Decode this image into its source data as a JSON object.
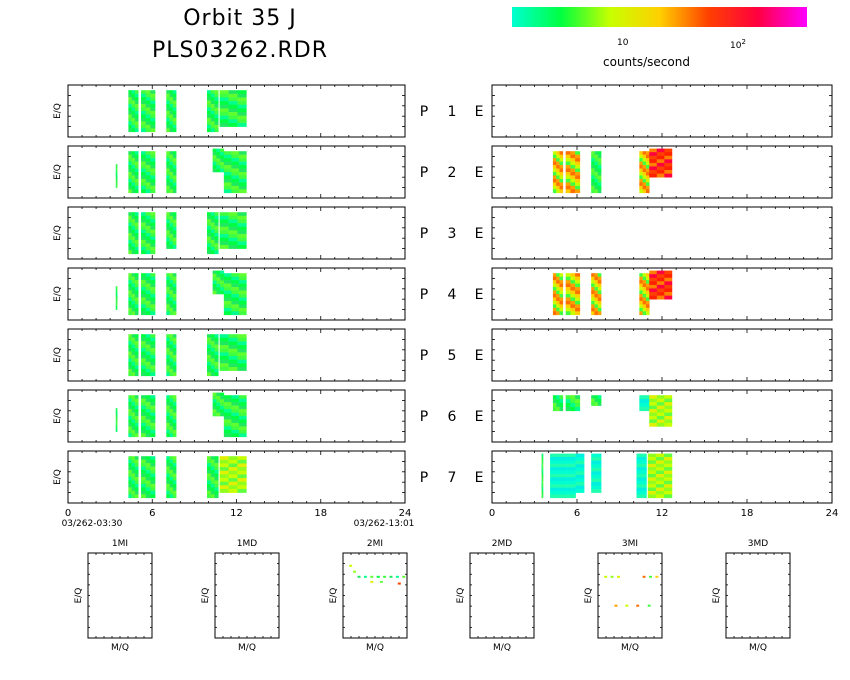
{
  "header": {
    "title_line1": "Orbit 35 J",
    "title_line2": "PLS03262.RDR"
  },
  "colorbar": {
    "unit_label": "counts/second",
    "tick_10": "10",
    "tick_100_base": "10",
    "tick_100_exp": "2",
    "colors": [
      "#00ffd0",
      "#00ff40",
      "#c8ff00",
      "#ffd000",
      "#ff4000",
      "#ff0040",
      "#ff00ff"
    ]
  },
  "chart_data": [
    {
      "type": "heatmap",
      "panel": "P-channels (left column)",
      "ylabel": "E/Q",
      "xlim": [
        0,
        24
      ],
      "xticks": [
        "0",
        "6",
        "12",
        "18",
        "24"
      ],
      "time_start": "03/262-03:30",
      "time_end": "03/262-13:01",
      "channels": [
        {
          "label": "P 1",
          "blocks": [
            [
              4.3,
              5.0,
              0.1,
              0.9,
              "g"
            ],
            [
              5.2,
              6.2,
              0.1,
              0.9,
              "g"
            ],
            [
              7.0,
              7.7,
              0.1,
              0.9,
              "g"
            ],
            [
              9.9,
              10.7,
              0.1,
              0.9,
              "g"
            ],
            [
              10.8,
              12.7,
              0.1,
              0.8,
              "g"
            ]
          ]
        },
        {
          "label": "P 2",
          "blocks": [
            [
              3.4,
              3.5,
              0.35,
              0.8,
              "g"
            ],
            [
              4.3,
              5.0,
              0.1,
              0.9,
              "g"
            ],
            [
              5.2,
              6.2,
              0.1,
              0.9,
              "g"
            ],
            [
              7.0,
              7.7,
              0.1,
              0.9,
              "g"
            ],
            [
              10.3,
              11.1,
              0.05,
              0.5,
              "g"
            ],
            [
              11.1,
              12.7,
              0.1,
              0.9,
              "g"
            ]
          ]
        },
        {
          "label": "P 3",
          "blocks": [
            [
              4.3,
              5.0,
              0.1,
              0.9,
              "g"
            ],
            [
              5.2,
              6.2,
              0.1,
              0.9,
              "g"
            ],
            [
              7.0,
              7.7,
              0.1,
              0.8,
              "g"
            ],
            [
              9.9,
              10.7,
              0.1,
              0.9,
              "g"
            ],
            [
              10.8,
              12.7,
              0.1,
              0.8,
              "g"
            ]
          ]
        },
        {
          "label": "P 4",
          "blocks": [
            [
              3.4,
              3.5,
              0.35,
              0.8,
              "g"
            ],
            [
              4.3,
              5.0,
              0.1,
              0.9,
              "g"
            ],
            [
              5.2,
              6.2,
              0.1,
              0.9,
              "g"
            ],
            [
              7.0,
              7.7,
              0.1,
              0.9,
              "g"
            ],
            [
              10.3,
              11.1,
              0.05,
              0.5,
              "g"
            ],
            [
              11.1,
              12.7,
              0.1,
              0.9,
              "g"
            ]
          ]
        },
        {
          "label": "P 5",
          "blocks": [
            [
              4.3,
              5.0,
              0.1,
              0.9,
              "g"
            ],
            [
              5.2,
              6.2,
              0.1,
              0.9,
              "g"
            ],
            [
              7.0,
              7.7,
              0.1,
              0.9,
              "g"
            ],
            [
              9.9,
              10.7,
              0.1,
              0.9,
              "g"
            ],
            [
              10.8,
              12.7,
              0.1,
              0.8,
              "g"
            ]
          ]
        },
        {
          "label": "P 6",
          "blocks": [
            [
              3.4,
              3.5,
              0.35,
              0.8,
              "g"
            ],
            [
              4.3,
              5.0,
              0.1,
              0.9,
              "g"
            ],
            [
              5.2,
              6.2,
              0.1,
              0.9,
              "g"
            ],
            [
              7.0,
              7.7,
              0.1,
              0.9,
              "g"
            ],
            [
              10.3,
              11.1,
              0.05,
              0.5,
              "g"
            ],
            [
              11.1,
              12.7,
              0.1,
              0.9,
              "g"
            ]
          ]
        },
        {
          "label": "P 7",
          "blocks": [
            [
              4.3,
              5.0,
              0.1,
              0.9,
              "g"
            ],
            [
              5.2,
              6.2,
              0.1,
              0.9,
              "g"
            ],
            [
              7.0,
              7.7,
              0.1,
              0.9,
              "g"
            ],
            [
              9.9,
              10.7,
              0.1,
              0.9,
              "g"
            ],
            [
              10.8,
              12.7,
              0.1,
              0.8,
              "y"
            ]
          ]
        }
      ]
    },
    {
      "type": "heatmap",
      "panel": "E-channels (right column)",
      "xlim": [
        0,
        24
      ],
      "xticks": [
        "0",
        "6",
        "12",
        "18",
        "24"
      ],
      "channels": [
        {
          "label": "E",
          "blocks": []
        },
        {
          "label": "E",
          "blocks": [
            [
              4.3,
              5.0,
              0.1,
              0.9,
              "o"
            ],
            [
              5.2,
              6.2,
              0.1,
              0.9,
              "o"
            ],
            [
              7.0,
              7.7,
              0.1,
              0.9,
              "g"
            ],
            [
              10.4,
              11.1,
              0.1,
              0.9,
              "o"
            ],
            [
              11.1,
              12.7,
              0.05,
              0.6,
              "r"
            ]
          ]
        },
        {
          "label": "E",
          "blocks": []
        },
        {
          "label": "E",
          "blocks": [
            [
              4.3,
              5.0,
              0.1,
              0.9,
              "o"
            ],
            [
              5.2,
              6.2,
              0.1,
              0.9,
              "o"
            ],
            [
              7.0,
              7.7,
              0.1,
              0.9,
              "o"
            ],
            [
              10.4,
              11.1,
              0.1,
              0.9,
              "o"
            ],
            [
              11.1,
              12.7,
              0.05,
              0.6,
              "r"
            ]
          ]
        },
        {
          "label": "E",
          "blocks": []
        },
        {
          "label": "E",
          "blocks": [
            [
              4.3,
              5.0,
              0.1,
              0.4,
              "g"
            ],
            [
              5.2,
              6.2,
              0.1,
              0.4,
              "g"
            ],
            [
              7.0,
              7.7,
              0.1,
              0.3,
              "g"
            ],
            [
              10.4,
              11.1,
              0.1,
              0.4,
              "c"
            ],
            [
              11.1,
              12.7,
              0.1,
              0.7,
              "y"
            ]
          ]
        },
        {
          "label": "E",
          "blocks": [
            [
              3.5,
              3.6,
              0.05,
              0.9,
              "g"
            ],
            [
              4.1,
              5.9,
              0.05,
              0.9,
              "c"
            ],
            [
              5.9,
              6.5,
              0.05,
              0.8,
              "c"
            ],
            [
              7.0,
              7.7,
              0.05,
              0.8,
              "c"
            ],
            [
              10.2,
              10.9,
              0.05,
              0.9,
              "c"
            ],
            [
              11.0,
              12.7,
              0.05,
              0.9,
              "y"
            ]
          ]
        }
      ]
    },
    {
      "type": "scatter",
      "panel": "mass channels",
      "xlabel": "M/Q",
      "ylabel": "E/Q",
      "subplots": [
        {
          "title": "1MI",
          "points": []
        },
        {
          "title": "1MD",
          "points": []
        },
        {
          "title": "2MI",
          "points": [
            [
              0.12,
              0.85,
              "y"
            ],
            [
              0.18,
              0.78,
              "y"
            ],
            [
              0.25,
              0.72,
              "g"
            ],
            [
              0.35,
              0.72,
              "g"
            ],
            [
              0.45,
              0.72,
              "g"
            ],
            [
              0.55,
              0.72,
              "g"
            ],
            [
              0.65,
              0.72,
              "g"
            ],
            [
              0.75,
              0.72,
              "g"
            ],
            [
              0.85,
              0.72,
              "g"
            ],
            [
              0.95,
              0.72,
              "g"
            ],
            [
              0.45,
              0.66,
              "y"
            ],
            [
              0.6,
              0.66,
              "y"
            ],
            [
              0.88,
              0.64,
              "r"
            ]
          ]
        },
        {
          "title": "2MD",
          "points": []
        },
        {
          "title": "3MI",
          "points": [
            [
              0.12,
              0.72,
              "y"
            ],
            [
              0.22,
              0.72,
              "y"
            ],
            [
              0.32,
              0.72,
              "y"
            ],
            [
              0.72,
              0.72,
              "o"
            ],
            [
              0.82,
              0.72,
              "o"
            ],
            [
              0.92,
              0.72,
              "o"
            ],
            [
              0.28,
              0.38,
              "o"
            ],
            [
              0.45,
              0.38,
              "o"
            ],
            [
              0.62,
              0.38,
              "o"
            ],
            [
              0.8,
              0.38,
              "o"
            ]
          ]
        },
        {
          "title": "3MD",
          "points": []
        }
      ]
    }
  ]
}
